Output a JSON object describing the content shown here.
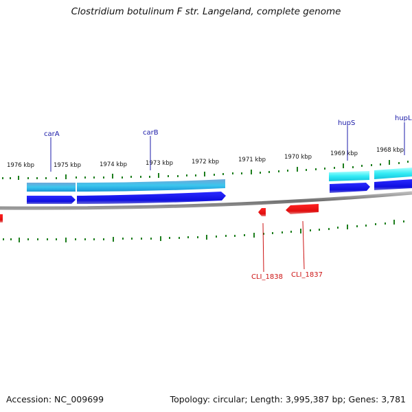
{
  "title": "Clostridium botulinum F str. Langeland, complete genome",
  "accession": "Accession: NC_009699",
  "stats": "Topology: circular; Length: 3,995,387 bp; Genes: 3,781",
  "colors": {
    "forward_gene": "#1414e6",
    "forward_cds_band": "#2ab6e6",
    "reverse_gene": "#ee1111",
    "tick": "#1c7d1c",
    "backbone": "#7a7a7a"
  },
  "scale_labels": [
    "1976 kbp",
    "1975 kbp",
    "1974 kbp",
    "1973 kbp",
    "1972 kbp",
    "1971 kbp",
    "1970 kbp",
    "1969 kbp",
    "1968 kbp"
  ],
  "forward_genes": [
    "carA",
    "carB",
    "hupS",
    "hupL"
  ],
  "reverse_genes": [
    "CLI_1838",
    "CLI_1837"
  ]
}
